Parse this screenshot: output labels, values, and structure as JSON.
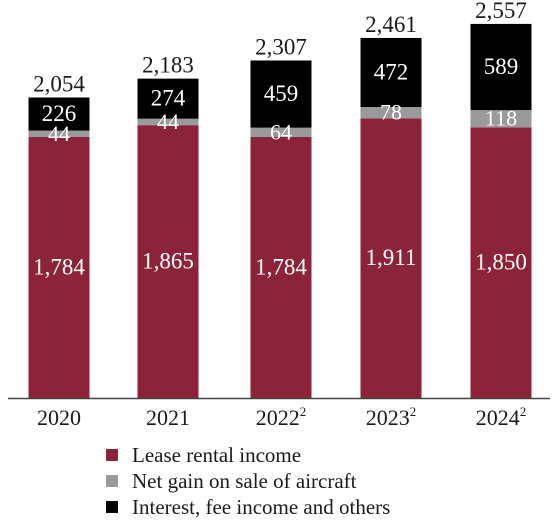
{
  "chart_data": {
    "type": "bar",
    "stacked": true,
    "categories": [
      "2020",
      "2021",
      "2022",
      "2023",
      "2024"
    ],
    "category_superscripts": [
      "",
      "",
      "2",
      "2",
      "2"
    ],
    "series": [
      {
        "name": "Lease rental income",
        "values": [
          1784,
          1865,
          1784,
          1911,
          1850
        ],
        "color": "#8b2439",
        "label_color": "#ffffff"
      },
      {
        "name": "Net gain on sale of aircraft",
        "values": [
          44,
          44,
          64,
          78,
          118
        ],
        "color": "#9a9a9a",
        "label_color": "#ffffff"
      },
      {
        "name": "Interest, fee income and others",
        "values": [
          226,
          274,
          459,
          472,
          589
        ],
        "color": "#000000",
        "label_color": "#ffffff"
      }
    ],
    "totals": [
      2054,
      2183,
      2307,
      2461,
      2557
    ],
    "title": "",
    "xlabel": "",
    "ylabel": "",
    "legend_position": "bottom",
    "grid": false
  }
}
